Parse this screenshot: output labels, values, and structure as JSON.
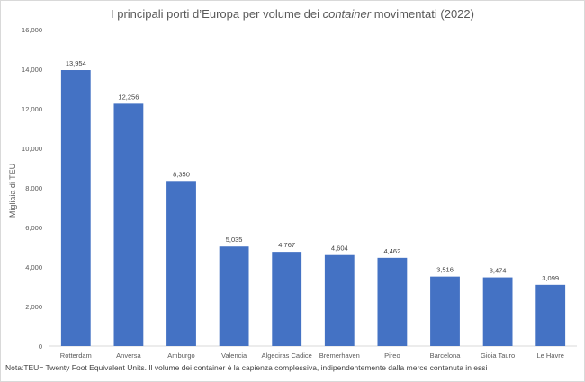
{
  "chart_data": {
    "type": "bar",
    "title_pre": "I principali porti d’Europa per volume dei ",
    "title_em": "container",
    "title_post": " movimentati (2022)",
    "ylabel": "Migliaia di TEU",
    "xlabel": "",
    "ylim": [
      0,
      16000
    ],
    "yticks": [
      "0",
      "2,000",
      "4,000",
      "6,000",
      "8,000",
      "10,000",
      "12,000",
      "14,000",
      "16,000"
    ],
    "ytick_values": [
      0,
      2000,
      4000,
      6000,
      8000,
      10000,
      12000,
      14000,
      16000
    ],
    "categories": [
      "Rotterdam",
      "Anversa",
      "Amburgo",
      "Valencia",
      "Algeciras Cadice",
      "Bremerhaven",
      "Pireo",
      "Barcelona",
      "Gioia Tauro",
      "Le Havre"
    ],
    "values": [
      13954,
      12256,
      8350,
      5035,
      4767,
      4604,
      4462,
      3516,
      3474,
      3099
    ],
    "value_labels": [
      "13,954",
      "12,256",
      "8,350",
      "5,035",
      "4,767",
      "4,604",
      "4,462",
      "3,516",
      "3,474",
      "3,099"
    ],
    "bar_color": "#4472c4",
    "grid": false,
    "legend": false
  },
  "note": "Nota:TEU= Twenty Foot Equivalent Units. Il volume dei container è la capienza complessiva, indipendentemente dalla merce contenuta in essi"
}
